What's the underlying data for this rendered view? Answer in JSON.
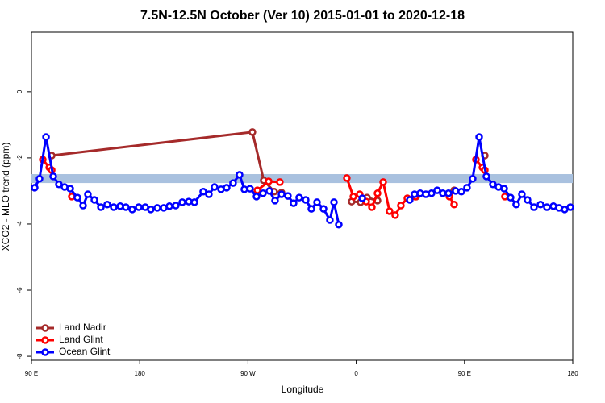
{
  "chart_data": {
    "type": "line",
    "title": "7.5N-12.5N October (Ver 10)   2015-01-01 to 2020-12-18",
    "x_label": "Longitude",
    "y_label": "XCO2 - MLO trend (ppm)",
    "xlim": [
      90,
      540
    ],
    "xticks": [
      {
        "value": 90,
        "label": "90 E"
      },
      180,
      {
        "value": 270,
        "label": "90 W"
      },
      {
        "value": 360,
        "label": "0"
      },
      {
        "value": 450,
        "label": "90 E"
      },
      {
        "value": 540,
        "label": "180"
      }
    ],
    "ylim": [
      -8.12,
      1.8
    ],
    "yticks": [
      0,
      -2,
      -4,
      -6,
      -8
    ],
    "band": {
      "ylim": [
        -2.76,
        -2.49
      ],
      "color": "#a9c1df"
    },
    "legend": "bottom left",
    "series": [
      {
        "name": "Land Nadir",
        "color": "#a52a2a",
        "x": [
          106.8,
          273.7,
          283.1,
          291.8,
          297.9,
          null,
          356.2,
          363.6,
          369.0,
          377.7,
          null,
          409.9,
          null,
          437.4,
          441.4,
          null,
          466.9
        ],
        "values": [
          -1.93,
          -1.22,
          -2.68,
          -3.02,
          -3.05,
          null,
          -3.32,
          -3.34,
          -3.2,
          -3.29,
          null,
          -3.17,
          null,
          -3.1,
          -2.98,
          null,
          -1.93
        ]
      },
      {
        "name": "Land Glint",
        "color": "#ff0000",
        "x": [
          99.4,
          104.8,
          106.8,
          null,
          123.5,
          null,
          277.8,
          287.2,
          296.5,
          null,
          352.2,
          357.6,
          362.9,
          368.3,
          373.0,
          377.7,
          382.4,
          387.7,
          392.4,
          397.1,
          402.5,
          409.2,
          null,
          437.4,
          441.4,
          null,
          459.5,
          464.9,
          466.9,
          null,
          483.6
        ],
        "values": [
          -2.05,
          -2.29,
          -2.37,
          null,
          -3.17,
          null,
          -2.98,
          -2.71,
          -2.73,
          null,
          -2.61,
          -3.17,
          -3.1,
          -3.32,
          -3.49,
          -3.07,
          -2.73,
          -3.61,
          -3.73,
          -3.44,
          -3.22,
          -3.17,
          null,
          -3.17,
          -3.41,
          null,
          -2.05,
          -2.29,
          -2.37,
          null,
          -3.17
        ]
      },
      {
        "name": "Ocean Glint",
        "color": "#0000ff",
        "x": [
          92.7,
          96.7,
          102.1,
          108.1,
          112.8,
          117.5,
          122.2,
          128.2,
          132.9,
          136.9,
          142.3,
          147.7,
          153.0,
          158.4,
          163.8,
          168.5,
          173.8,
          179.2,
          184.6,
          189.2,
          194.6,
          200.0,
          204.7,
          210.0,
          215.4,
          220.8,
          225.5,
          232.8,
          237.5,
          242.2,
          247.6,
          252.3,
          257.6,
          263.0,
          267.0,
          271.7,
          277.1,
          282.5,
          287.8,
          292.5,
          297.9,
          303.2,
          307.9,
          312.6,
          318.0,
          322.7,
          327.4,
          332.8,
          338.1,
          341.5,
          345.5,
          null,
          365.0,
          null,
          404.5,
          408.5,
          413.2,
          417.9,
          422.6,
          427.3,
          432.0,
          436.7,
          442.7,
          447.4,
          452.1,
          456.8,
          462.2,
          468.2,
          473.6,
          478.3,
          483.0,
          488.3,
          493.0,
          497.7,
          502.4,
          507.8,
          513.2,
          518.5,
          523.9,
          528.6,
          533.3,
          538.0
        ],
        "values": [
          -2.9,
          -2.63,
          -1.37,
          -2.56,
          -2.8,
          -2.88,
          -2.93,
          -3.2,
          -3.44,
          -3.1,
          -3.27,
          -3.49,
          -3.41,
          -3.49,
          -3.46,
          -3.49,
          -3.56,
          -3.49,
          -3.49,
          -3.56,
          -3.51,
          -3.51,
          -3.46,
          -3.44,
          -3.34,
          -3.32,
          -3.34,
          -3.02,
          -3.1,
          -2.88,
          -2.95,
          -2.9,
          -2.76,
          -2.51,
          -2.95,
          -2.93,
          -3.17,
          -3.07,
          -3.0,
          -3.29,
          -3.1,
          -3.15,
          -3.37,
          -3.2,
          -3.27,
          -3.54,
          -3.34,
          -3.54,
          -3.88,
          -3.34,
          -4.02,
          null,
          -3.22,
          null,
          -3.27,
          -3.1,
          -3.07,
          -3.1,
          -3.07,
          -2.98,
          -3.07,
          -3.07,
          -3.0,
          -3.02,
          -2.9,
          -2.63,
          -1.37,
          -2.56,
          -2.8,
          -2.88,
          -2.93,
          -3.2,
          -3.41,
          -3.1,
          -3.27,
          -3.49,
          -3.41,
          -3.49,
          -3.46,
          -3.51,
          -3.56,
          -3.49
        ]
      }
    ]
  }
}
